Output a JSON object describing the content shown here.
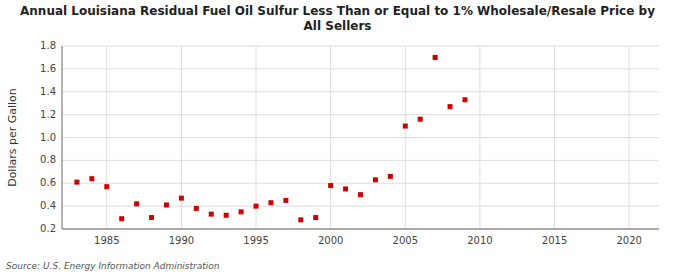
{
  "chart_data": {
    "type": "scatter",
    "title": "Annual Louisiana Residual Fuel Oil Sulfur Less Than or Equal to 1% Wholesale/Resale Price by\nAll Sellers",
    "y_label": "Dollars per Gallon",
    "source": "Source: U.S. Energy Information Administration",
    "color": "#cc0000",
    "marker": "square",
    "grid": true,
    "x": [
      1983,
      1984,
      1985,
      1986,
      1987,
      1988,
      1989,
      1990,
      1991,
      1992,
      1993,
      1994,
      1995,
      1996,
      1997,
      1998,
      1999,
      2000,
      2001,
      2002,
      2003,
      2004,
      2005,
      2006,
      2007,
      2008,
      2009
    ],
    "values": [
      0.61,
      0.64,
      0.57,
      0.29,
      0.42,
      0.3,
      0.41,
      0.47,
      0.38,
      0.33,
      0.32,
      0.35,
      0.4,
      0.43,
      0.45,
      0.28,
      0.3,
      0.58,
      0.55,
      0.5,
      0.63,
      0.66,
      1.1,
      1.16,
      1.7,
      1.27,
      1.33
    ],
    "xlim": [
      1982,
      2022
    ],
    "ylim": [
      0.2,
      1.8
    ],
    "xticks": [
      1985,
      1990,
      1995,
      2000,
      2005,
      2010,
      2015,
      2020
    ],
    "yticks": [
      0.2,
      0.4,
      0.6,
      0.8,
      {
        "value": 1.0,
        "label": "1.0"
      },
      1.2,
      1.4,
      1.6,
      1.8
    ]
  }
}
